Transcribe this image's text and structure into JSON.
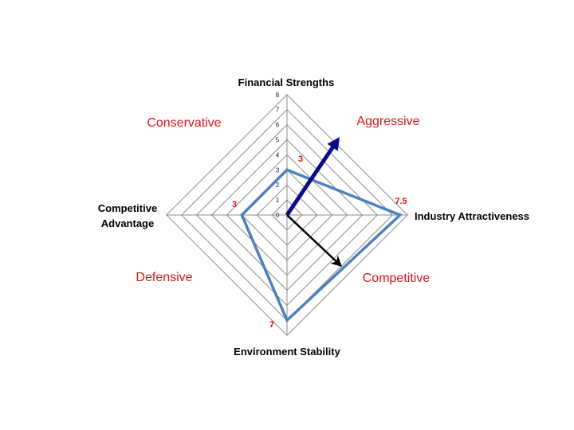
{
  "chart_data": {
    "type": "radar",
    "axes": [
      "Financial Strengths",
      "Industry Attractiveness",
      "Environment Stability",
      "Competitive Advantage"
    ],
    "axis_label_lines": {
      "competitive_advantage": [
        "Competitive",
        "Advantage"
      ]
    },
    "range": [
      0,
      8
    ],
    "ticks": [
      "0",
      "1",
      "2",
      "3",
      "4",
      "5",
      "6",
      "7",
      "8"
    ],
    "series": [
      {
        "values": [
          3,
          7.5,
          7,
          3
        ],
        "color": "#4f81bd"
      }
    ],
    "data_labels": [
      "3",
      "7.5",
      "7",
      "3"
    ],
    "quadrants": {
      "top_right": "Aggressive",
      "top_left": "Conservative",
      "bottom_left": "Defensive",
      "bottom_right": "Competitive"
    },
    "vectors": [
      {
        "direction": "top_right",
        "magnitude": 5,
        "color": "#0a0a8c"
      },
      {
        "direction": "bottom_right",
        "magnitude": 4,
        "color": "#000000"
      }
    ],
    "grid": true,
    "colors": {
      "quadrant_text": "#e0141b",
      "data_label": "#d4141b",
      "grid": "#8c8c8c"
    }
  }
}
